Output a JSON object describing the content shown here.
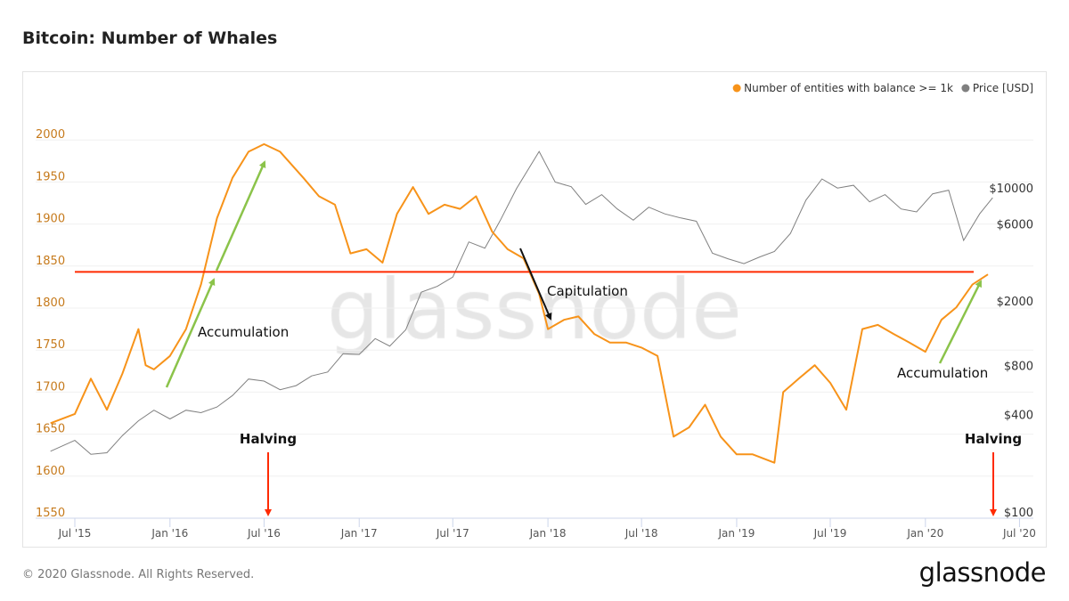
{
  "title": "Bitcoin: Number of Whales",
  "footer": "© 2020 Glassnode. All Rights Reserved.",
  "logo": "glassnode",
  "watermark": "glassnode",
  "chart_data": {
    "type": "line",
    "title": "Bitcoin: Number of Whales",
    "legend_placement": "top-right",
    "grid": true,
    "x_ticks": [
      {
        "label": "Jul '15",
        "date": "2015-07-01"
      },
      {
        "label": "Jan '16",
        "date": "2016-01-01"
      },
      {
        "label": "Jul '16",
        "date": "2016-07-01"
      },
      {
        "label": "Jan '17",
        "date": "2017-01-01"
      },
      {
        "label": "Jul '17",
        "date": "2017-07-01"
      },
      {
        "label": "Jan '18",
        "date": "2018-01-01"
      },
      {
        "label": "Jul '18",
        "date": "2018-07-01"
      },
      {
        "label": "Jan '19",
        "date": "2019-01-01"
      },
      {
        "label": "Jul '19",
        "date": "2019-07-01"
      },
      {
        "label": "Jan '20",
        "date": "2020-01-01"
      },
      {
        "label": "Jul '20",
        "date": "2020-07-01"
      }
    ],
    "y_left": {
      "ticks": [
        1550,
        1600,
        1650,
        1700,
        1750,
        1800,
        1850,
        1900,
        1950,
        2000
      ],
      "range": [
        1550,
        2000
      ],
      "color": "#c67a1c"
    },
    "y_right": {
      "scale": "log",
      "ticks": [
        {
          "label": "$100",
          "value": 100
        },
        {
          "label": "$400",
          "value": 400
        },
        {
          "label": "$800",
          "value": 800
        },
        {
          "label": "$2000",
          "value": 2000
        },
        {
          "label": "$6000",
          "value": 6000
        },
        {
          "label": "$10000",
          "value": 10000
        }
      ],
      "range": [
        100,
        10000
      ]
    },
    "series": [
      {
        "name": "Number of entities with balance >= 1k",
        "color": "#f7931a",
        "axis": "left",
        "dates": [
          "2015-05-15",
          "2015-07-01",
          "2015-08-01",
          "2015-09-01",
          "2015-10-01",
          "2015-11-01",
          "2015-11-15",
          "2015-12-01",
          "2016-01-01",
          "2016-02-01",
          "2016-03-01",
          "2016-04-01",
          "2016-05-01",
          "2016-06-01",
          "2016-07-01",
          "2016-08-01",
          "2016-09-15",
          "2016-10-15",
          "2016-11-15",
          "2016-12-15",
          "2017-01-15",
          "2017-02-15",
          "2017-03-15",
          "2017-04-15",
          "2017-05-15",
          "2017-06-15",
          "2017-07-15",
          "2017-08-15",
          "2017-09-15",
          "2017-10-15",
          "2017-11-15",
          "2017-12-15",
          "2018-01-01",
          "2018-02-01",
          "2018-03-01",
          "2018-04-01",
          "2018-05-01",
          "2018-06-01",
          "2018-07-01",
          "2018-08-01",
          "2018-09-01",
          "2018-10-01",
          "2018-11-01",
          "2018-12-01",
          "2019-01-01",
          "2019-02-01",
          "2019-03-15",
          "2019-04-01",
          "2019-05-01",
          "2019-06-01",
          "2019-07-01",
          "2019-08-01",
          "2019-09-01",
          "2019-10-01",
          "2019-11-01",
          "2019-12-01",
          "2020-01-01",
          "2020-02-01",
          "2020-03-01",
          "2020-04-01",
          "2020-05-01"
        ],
        "values": [
          1663,
          1674,
          1716,
          1679,
          1722,
          1775,
          1732,
          1727,
          1743,
          1775,
          1828,
          1907,
          1955,
          1986,
          1995,
          1986,
          1955,
          1933,
          1923,
          1865,
          1870,
          1854,
          1912,
          1944,
          1912,
          1923,
          1918,
          1933,
          1891,
          1870,
          1859,
          1817,
          1775,
          1786,
          1790,
          1769,
          1759,
          1759,
          1753,
          1743,
          1647,
          1658,
          1685,
          1647,
          1626,
          1626,
          1616,
          1700,
          1716,
          1732,
          1711,
          1679,
          1775,
          1780,
          1769,
          1759,
          1748,
          1786,
          1801,
          1828,
          1840
        ]
      },
      {
        "name": "Price [USD]",
        "color": "#808080",
        "axis": "right",
        "dates": [
          "2015-05-15",
          "2015-07-01",
          "2015-08-01",
          "2015-09-01",
          "2015-10-01",
          "2015-11-01",
          "2015-12-01",
          "2016-01-01",
          "2016-02-01",
          "2016-03-01",
          "2016-04-01",
          "2016-05-01",
          "2016-06-01",
          "2016-07-01",
          "2016-08-01",
          "2016-09-01",
          "2016-10-01",
          "2016-11-01",
          "2016-12-01",
          "2017-01-01",
          "2017-02-01",
          "2017-03-01",
          "2017-04-01",
          "2017-05-01",
          "2017-06-01",
          "2017-07-01",
          "2017-08-01",
          "2017-09-01",
          "2017-10-01",
          "2017-11-01",
          "2017-12-15",
          "2018-01-15",
          "2018-02-15",
          "2018-03-15",
          "2018-04-15",
          "2018-05-15",
          "2018-06-15",
          "2018-07-15",
          "2018-08-15",
          "2018-09-15",
          "2018-10-15",
          "2018-11-15",
          "2018-12-15",
          "2019-01-15",
          "2019-02-15",
          "2019-03-15",
          "2019-04-15",
          "2019-05-15",
          "2019-06-15",
          "2019-07-15",
          "2019-08-15",
          "2019-09-15",
          "2019-10-15",
          "2019-11-15",
          "2019-12-15",
          "2020-01-15",
          "2020-02-15",
          "2020-03-15",
          "2020-04-15",
          "2020-05-10"
        ],
        "values": [
          240,
          280,
          230,
          235,
          300,
          370,
          430,
          380,
          430,
          415,
          450,
          530,
          670,
          650,
          575,
          610,
          700,
          740,
          960,
          950,
          1190,
          1070,
          1350,
          2300,
          2500,
          2850,
          4700,
          4300,
          6400,
          10000,
          17000,
          11000,
          10300,
          8000,
          9200,
          7500,
          6400,
          7700,
          7000,
          6600,
          6300,
          4000,
          3700,
          3450,
          3800,
          4100,
          5300,
          8500,
          11500,
          10100,
          10500,
          8300,
          9200,
          7500,
          7200,
          9300,
          9800,
          4800,
          7000,
          8800
        ]
      }
    ],
    "reference_line": {
      "value": 1843,
      "color": "#ff2a00"
    },
    "annotations": [
      {
        "label": "Accumulation"
      },
      {
        "label": "Capitulation"
      },
      {
        "label": "Accumulation"
      },
      {
        "label": "Halving",
        "date": "2016-07-09"
      },
      {
        "label": "Halving",
        "date": "2020-05-11"
      }
    ]
  }
}
